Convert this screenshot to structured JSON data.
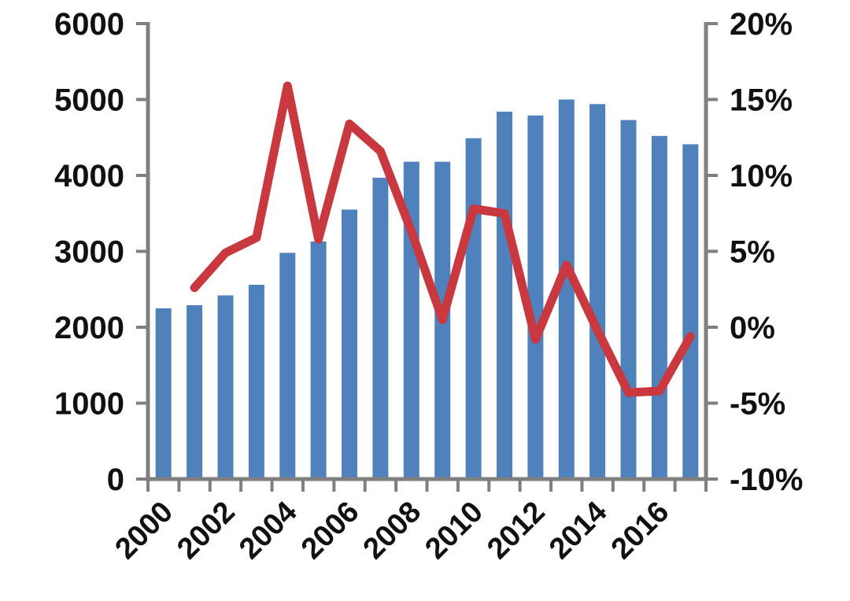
{
  "chart_data": {
    "type": "bar+line",
    "title": "",
    "xlabel": "",
    "ylabel": "",
    "grid": false,
    "legend": false,
    "background_color": "#ffffff",
    "axis_color": "#7f7f7f",
    "text_color": "#111111",
    "categories": [
      "2000",
      "2001",
      "2002",
      "2003",
      "2004",
      "2005",
      "2006",
      "2007",
      "2008",
      "2009",
      "2010",
      "2011",
      "2012",
      "2013",
      "2014",
      "2015",
      "2016",
      "2017"
    ],
    "series": [
      {
        "name": "volume-bars",
        "type": "bar",
        "axis": "left",
        "color": "#4f81bd",
        "values": [
          2250,
          2290,
          2420,
          2560,
          2980,
          3130,
          3550,
          3970,
          4180,
          4180,
          4490,
          4840,
          4790,
          5000,
          4940,
          4730,
          4520,
          4410
        ]
      },
      {
        "name": "yoy-growth-line",
        "type": "line",
        "axis": "right",
        "color": "#c8383e",
        "values": [
          null,
          2.6,
          4.9,
          5.9,
          15.9,
          5.8,
          13.4,
          11.6,
          6.3,
          0.5,
          7.8,
          7.5,
          -0.8,
          4.1,
          -0.2,
          -4.3,
          -4.2,
          -0.6
        ]
      }
    ],
    "left_axis": {
      "min": 0,
      "max": 6000,
      "step": 1000,
      "tick_labels": [
        "0",
        "1000",
        "2000",
        "3000",
        "4000",
        "5000",
        "6000"
      ]
    },
    "right_axis": {
      "min": -10,
      "max": 20,
      "step": 5,
      "tick_labels": [
        "-10%",
        "-5%",
        "0%",
        "5%",
        "10%",
        "15%",
        "20%"
      ]
    },
    "x_axis": {
      "labeled_categories": [
        "2000",
        "2002",
        "2004",
        "2006",
        "2008",
        "2010",
        "2012",
        "2014",
        "2016"
      ],
      "label_rotation_deg": -45
    }
  }
}
